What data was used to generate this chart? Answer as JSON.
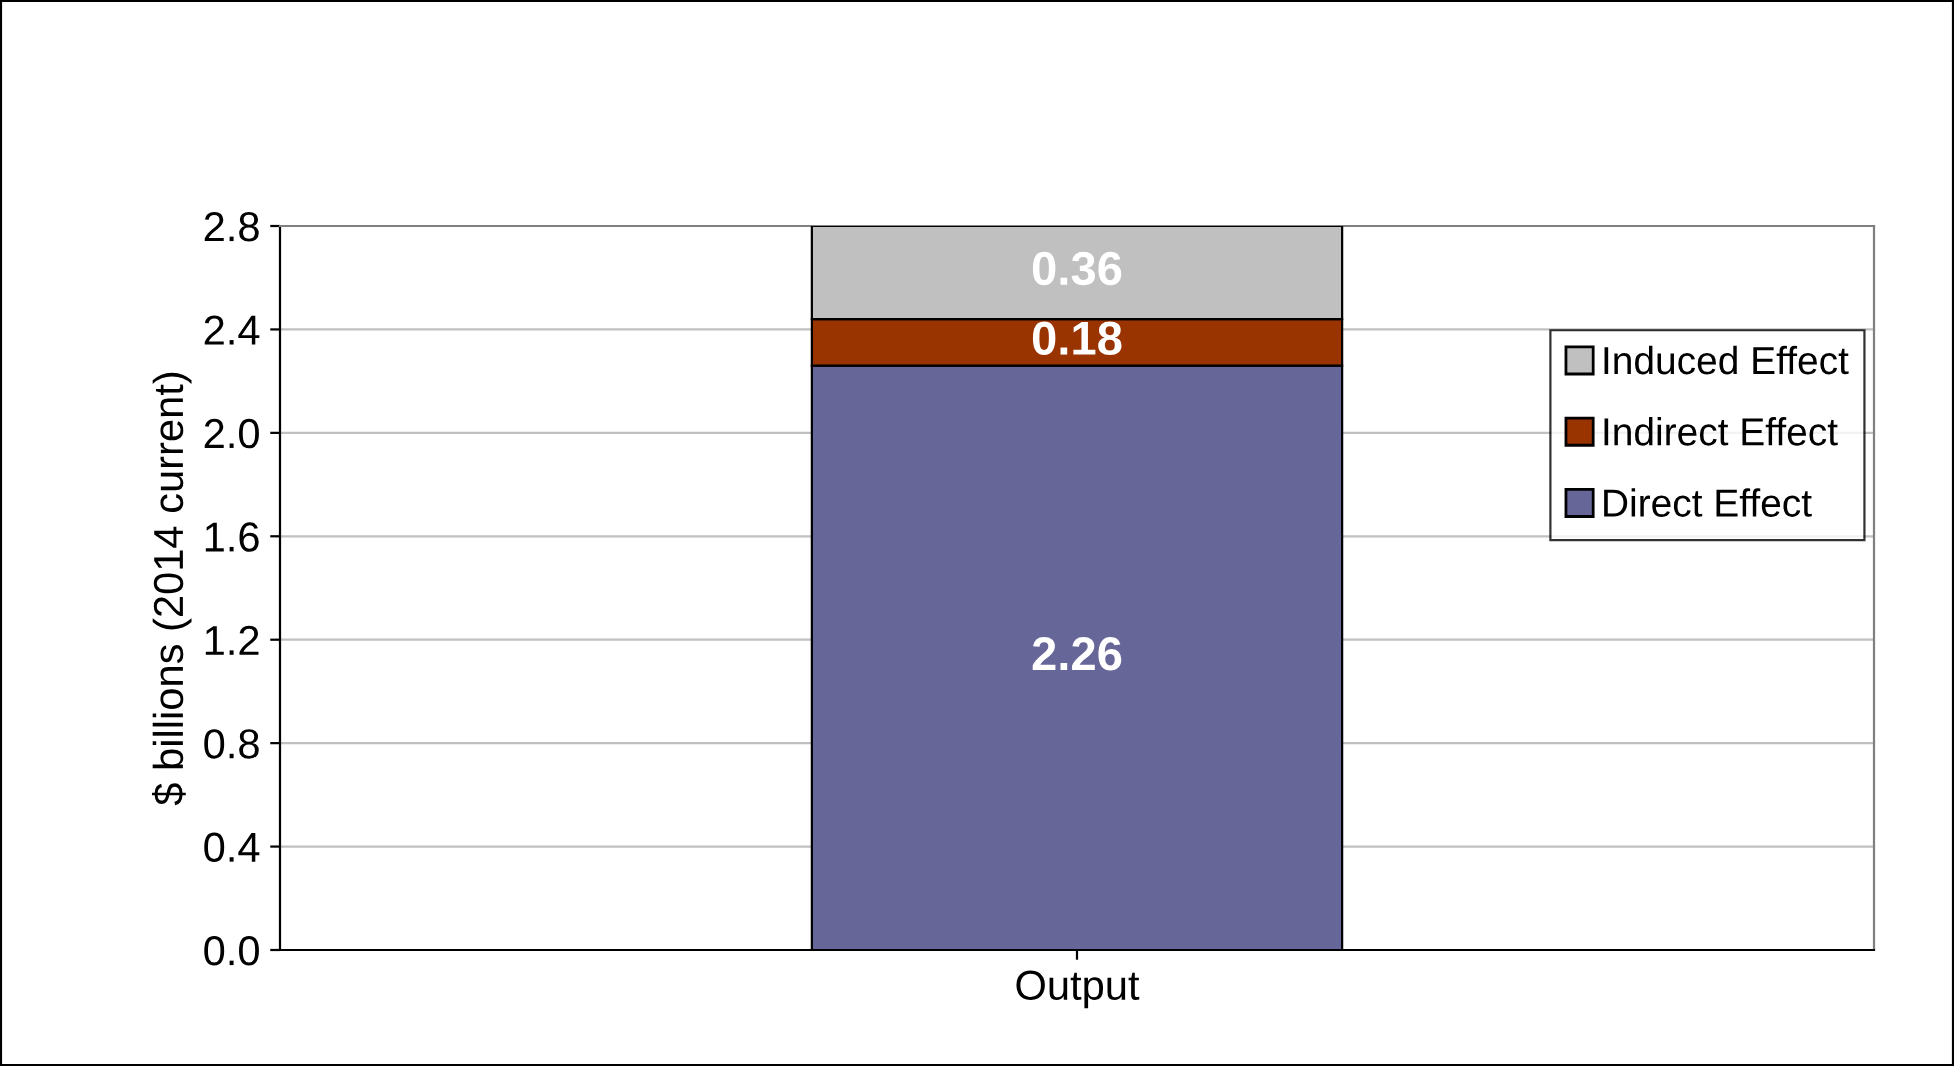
{
  "chart_data": {
    "type": "bar",
    "stacked": true,
    "ylabel": "$ billions (2014 current)",
    "categories": [
      "Output"
    ],
    "series": [
      {
        "name": "Direct Effect",
        "color": "#666699",
        "values": [
          2.26
        ]
      },
      {
        "name": "Indirect Effect",
        "color": "#993300",
        "values": [
          0.18
        ]
      },
      {
        "name": "Induced Effect",
        "color": "#c0c0c0",
        "values": [
          0.36
        ]
      }
    ],
    "ylim": [
      0,
      2.8
    ],
    "yticks": [
      {
        "value": 0,
        "label": "0.0"
      },
      0.4,
      0.8,
      1.2,
      1.6,
      {
        "value": 2,
        "label": "2.0"
      },
      2.4,
      2.8
    ],
    "grid": "y",
    "legend": "right",
    "data_labels": true
  }
}
